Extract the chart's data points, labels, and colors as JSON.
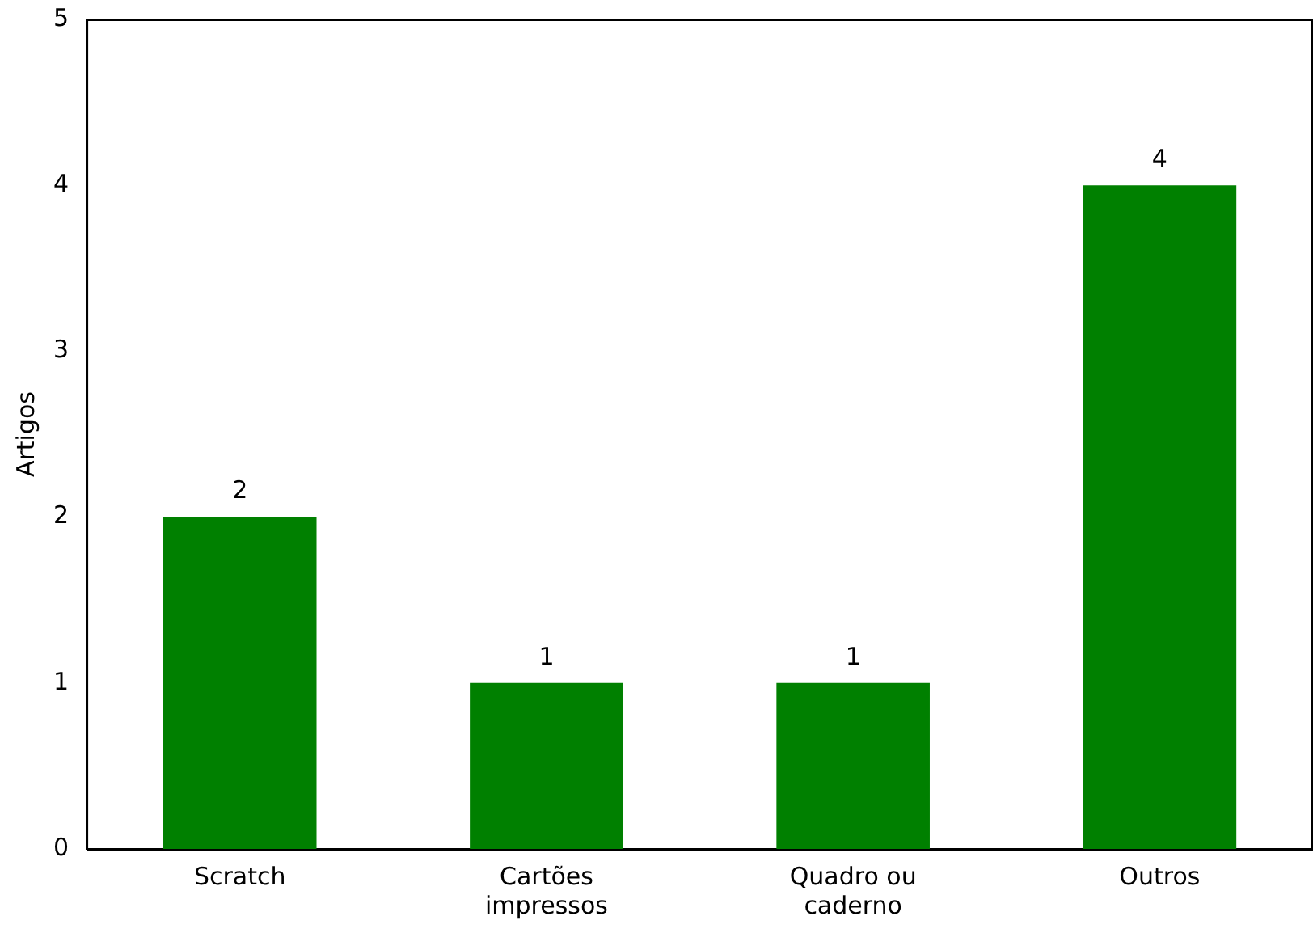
{
  "chart_data": {
    "type": "bar",
    "ylabel": "Artigos",
    "categories": [
      "Scratch",
      "Cartões impressos",
      "Quadro ou caderno",
      "Outros"
    ],
    "values": [
      2,
      1,
      1,
      4
    ],
    "color": "#008000",
    "ylim": [
      0,
      5
    ],
    "yticks": [
      0,
      1,
      2,
      3,
      4,
      5
    ],
    "grid": false,
    "legend": false,
    "data_labels": true
  }
}
